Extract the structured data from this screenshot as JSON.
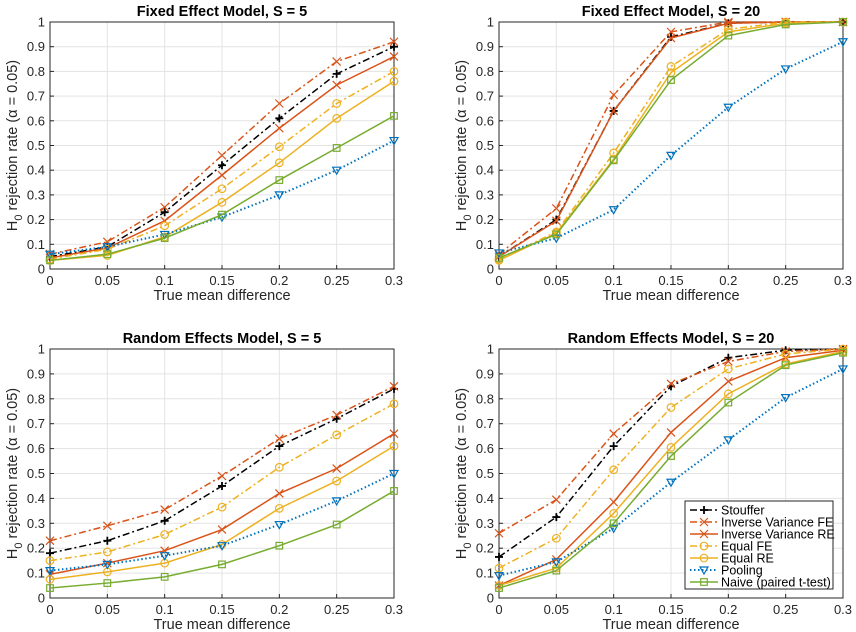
{
  "styles": {
    "Stouffer": {
      "color": "#000000",
      "dash": "dashdot",
      "marker": "plus"
    },
    "Inverse Variance FE": {
      "color": "#D95319",
      "dash": "dashdot",
      "marker": "x"
    },
    "Inverse Variance RE": {
      "color": "#D95319",
      "dash": "solid",
      "marker": "x"
    },
    "Equal FE": {
      "color": "#EDB120",
      "dash": "dashdot",
      "marker": "circle"
    },
    "Equal RE": {
      "color": "#EDB120",
      "dash": "solid",
      "marker": "circle"
    },
    "Pooling": {
      "color": "#0072BD",
      "dash": "dotted",
      "marker": "triangle-down"
    },
    "Naive (paired t-test)": {
      "color": "#77AC30",
      "dash": "solid",
      "marker": "square"
    }
  },
  "chart_data": [
    {
      "type": "line",
      "title": "Fixed Effect Model, S = 5",
      "xlabel": "True mean difference",
      "ylabel": {
        "main": "H",
        "sub": "0",
        "rest": " rejection rate (α = 0.05)"
      },
      "xlim": [
        0,
        0.3
      ],
      "ylim": [
        0,
        1
      ],
      "grid": true,
      "x": [
        0,
        0.05,
        0.1,
        0.15,
        0.2,
        0.25,
        0.3
      ],
      "xticks": [
        "0",
        "0.05",
        "0.1",
        "0.15",
        "0.2",
        "0.25",
        "0.3"
      ],
      "yticks": [
        "0",
        "0.1",
        "0.2",
        "0.3",
        "0.4",
        "0.5",
        "0.6",
        "0.7",
        "0.8",
        "0.9",
        "1"
      ],
      "series": [
        {
          "name": "Stouffer",
          "values": [
            0.05,
            0.09,
            0.23,
            0.42,
            0.61,
            0.79,
            0.9
          ]
        },
        {
          "name": "Inverse Variance FE",
          "values": [
            0.06,
            0.11,
            0.25,
            0.46,
            0.67,
            0.84,
            0.92
          ]
        },
        {
          "name": "Inverse Variance RE",
          "values": [
            0.045,
            0.085,
            0.195,
            0.38,
            0.57,
            0.745,
            0.86
          ]
        },
        {
          "name": "Equal FE",
          "values": [
            0.04,
            0.08,
            0.175,
            0.325,
            0.495,
            0.67,
            0.8
          ]
        },
        {
          "name": "Equal RE",
          "values": [
            0.035,
            0.055,
            0.13,
            0.27,
            0.43,
            0.61,
            0.76
          ]
        },
        {
          "name": "Pooling",
          "values": [
            0.06,
            0.09,
            0.14,
            0.21,
            0.3,
            0.4,
            0.52
          ]
        },
        {
          "name": "Naive (paired t-test)",
          "values": [
            0.035,
            0.06,
            0.125,
            0.22,
            0.36,
            0.49,
            0.62
          ]
        }
      ]
    },
    {
      "type": "line",
      "title": "Fixed Effect Model, S = 20",
      "xlabel": "True mean difference",
      "ylabel": {
        "main": "H",
        "sub": "0",
        "rest": " rejection rate (α = 0.05)"
      },
      "xlim": [
        0,
        0.3
      ],
      "ylim": [
        0,
        1
      ],
      "grid": true,
      "x": [
        0,
        0.05,
        0.1,
        0.15,
        0.2,
        0.25,
        0.3
      ],
      "xticks": [
        "0",
        "0.05",
        "0.1",
        "0.15",
        "0.2",
        "0.25",
        "0.3"
      ],
      "yticks": [
        "0",
        "0.1",
        "0.2",
        "0.3",
        "0.4",
        "0.5",
        "0.6",
        "0.7",
        "0.8",
        "0.9",
        "1"
      ],
      "series": [
        {
          "name": "Stouffer",
          "values": [
            0.05,
            0.2,
            0.64,
            0.94,
            0.995,
            1,
            1
          ]
        },
        {
          "name": "Inverse Variance FE",
          "values": [
            0.06,
            0.245,
            0.705,
            0.96,
            1,
            1,
            1
          ]
        },
        {
          "name": "Inverse Variance RE",
          "values": [
            0.05,
            0.195,
            0.64,
            0.935,
            0.995,
            1,
            1
          ]
        },
        {
          "name": "Equal FE",
          "values": [
            0.04,
            0.15,
            0.47,
            0.82,
            0.97,
            1,
            1
          ]
        },
        {
          "name": "Equal RE",
          "values": [
            0.035,
            0.145,
            0.445,
            0.795,
            0.96,
            0.995,
            1
          ]
        },
        {
          "name": "Pooling",
          "values": [
            0.065,
            0.125,
            0.24,
            0.46,
            0.655,
            0.81,
            0.92
          ]
        },
        {
          "name": "Naive (paired t-test)",
          "values": [
            0.045,
            0.14,
            0.44,
            0.765,
            0.945,
            0.99,
            1
          ]
        }
      ]
    },
    {
      "type": "line",
      "title": "Random Effects Model, S = 5",
      "xlabel": "True mean difference",
      "ylabel": {
        "main": "H",
        "sub": "0",
        "rest": " rejection rate (α = 0.05)"
      },
      "xlim": [
        0,
        0.3
      ],
      "ylim": [
        0,
        1
      ],
      "grid": true,
      "x": [
        0,
        0.05,
        0.1,
        0.15,
        0.2,
        0.25,
        0.3
      ],
      "xticks": [
        "0",
        "0.05",
        "0.1",
        "0.15",
        "0.2",
        "0.25",
        "0.3"
      ],
      "yticks": [
        "0",
        "0.1",
        "0.2",
        "0.3",
        "0.4",
        "0.5",
        "0.6",
        "0.7",
        "0.8",
        "0.9",
        "1"
      ],
      "series": [
        {
          "name": "Stouffer",
          "values": [
            0.18,
            0.23,
            0.31,
            0.45,
            0.61,
            0.72,
            0.84
          ]
        },
        {
          "name": "Inverse Variance FE",
          "values": [
            0.23,
            0.29,
            0.355,
            0.49,
            0.64,
            0.735,
            0.85
          ]
        },
        {
          "name": "Inverse Variance RE",
          "values": [
            0.095,
            0.14,
            0.19,
            0.275,
            0.42,
            0.52,
            0.66
          ]
        },
        {
          "name": "Equal FE",
          "values": [
            0.15,
            0.185,
            0.255,
            0.365,
            0.525,
            0.655,
            0.78
          ]
        },
        {
          "name": "Equal RE",
          "values": [
            0.075,
            0.105,
            0.14,
            0.215,
            0.36,
            0.47,
            0.61
          ]
        },
        {
          "name": "Pooling",
          "values": [
            0.11,
            0.135,
            0.17,
            0.21,
            0.295,
            0.39,
            0.5
          ]
        },
        {
          "name": "Naive (paired t-test)",
          "values": [
            0.04,
            0.06,
            0.085,
            0.135,
            0.21,
            0.295,
            0.43
          ]
        }
      ]
    },
    {
      "type": "line",
      "title": "Random Effects Model, S = 20",
      "xlabel": "True mean difference",
      "ylabel": {
        "main": "H",
        "sub": "0",
        "rest": " rejection rate (α = 0.05)"
      },
      "xlim": [
        0,
        0.3
      ],
      "ylim": [
        0,
        1
      ],
      "grid": true,
      "legend": "bottom-right",
      "x": [
        0,
        0.05,
        0.1,
        0.15,
        0.2,
        0.25,
        0.3
      ],
      "xticks": [
        "0",
        "0.05",
        "0.1",
        "0.15",
        "0.2",
        "0.25",
        "0.3"
      ],
      "yticks": [
        "0",
        "0.1",
        "0.2",
        "0.3",
        "0.4",
        "0.5",
        "0.6",
        "0.7",
        "0.8",
        "0.9",
        "1"
      ],
      "series": [
        {
          "name": "Stouffer",
          "values": [
            0.165,
            0.325,
            0.61,
            0.85,
            0.965,
            0.995,
            1
          ]
        },
        {
          "name": "Inverse Variance FE",
          "values": [
            0.26,
            0.395,
            0.66,
            0.86,
            0.95,
            0.99,
            1
          ]
        },
        {
          "name": "Inverse Variance RE",
          "values": [
            0.05,
            0.155,
            0.385,
            0.665,
            0.87,
            0.965,
            0.995
          ]
        },
        {
          "name": "Equal FE",
          "values": [
            0.12,
            0.24,
            0.515,
            0.765,
            0.92,
            0.98,
            1
          ]
        },
        {
          "name": "Equal RE",
          "values": [
            0.05,
            0.12,
            0.34,
            0.605,
            0.82,
            0.94,
            0.99
          ]
        },
        {
          "name": "Pooling",
          "values": [
            0.09,
            0.145,
            0.28,
            0.465,
            0.635,
            0.805,
            0.92
          ]
        },
        {
          "name": "Naive (paired t-test)",
          "values": [
            0.04,
            0.11,
            0.3,
            0.57,
            0.785,
            0.935,
            0.985
          ]
        }
      ]
    }
  ]
}
